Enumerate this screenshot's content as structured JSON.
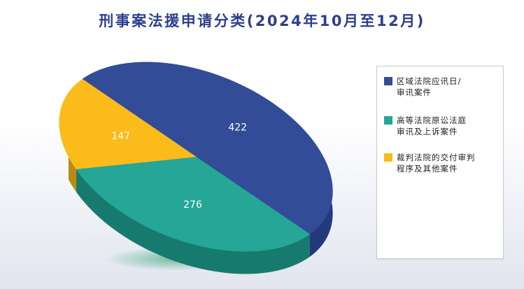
{
  "title": "刑事案法援申请分类(2024年10月至12月)",
  "chart_data": {
    "type": "pie",
    "title": "刑事案法援申请分类(2024年10月至12月)",
    "slices": [
      {
        "label_lines": [
          "区域法院应讯日/",
          "审讯案件"
        ],
        "value": 422,
        "color": "#324c98",
        "side_color": "#223a7c"
      },
      {
        "label_lines": [
          "高等法院原讼法庭",
          "审讯及上诉案件"
        ],
        "value": 276,
        "color": "#25a697",
        "side_color": "#177a6f"
      },
      {
        "label_lines": [
          "裁判法院的交付审判",
          "程序及其他案件"
        ],
        "value": 147,
        "color": "#fbbb1b",
        "side_color": "#b88b12"
      }
    ],
    "legend_position": "right",
    "style": "3d-tilted"
  }
}
